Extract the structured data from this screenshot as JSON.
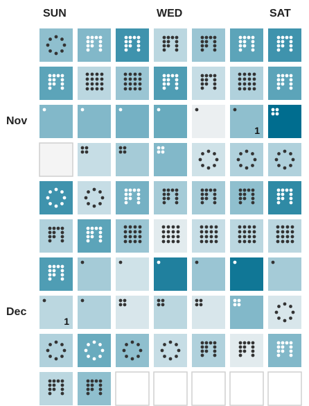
{
  "chart_data": {
    "type": "heatmap",
    "subtype": "calendar",
    "weekday_labels": [
      "SUN",
      "",
      "",
      "WED",
      "",
      "",
      "SAT"
    ],
    "month_labels": [
      {
        "text": "Nov",
        "week_index": 2
      },
      {
        "text": "Dec",
        "week_index": 7
      }
    ],
    "day_number_labels": [
      {
        "text": "1",
        "week_index": 2,
        "day_index": 5
      },
      {
        "text": "1",
        "week_index": 7,
        "day_index": 0
      }
    ],
    "color_scale": [
      "#f4f4f4",
      "#c6dde5",
      "#8fbfce",
      "#4f9db4",
      "#006d8f"
    ],
    "encoding": "cell color and number of dots encode value",
    "weeks": [
      {
        "days": [
          {
            "v": 0.5,
            "d": 8
          },
          {
            "v": 0.55,
            "d": 12
          },
          {
            "v": 0.8,
            "d": 12
          },
          {
            "v": 0.3,
            "d": 12
          },
          {
            "v": 0.45,
            "d": 12
          },
          {
            "v": 0.7,
            "d": 12
          },
          {
            "v": 0.8,
            "d": 12
          }
        ]
      },
      {
        "days": [
          {
            "v": 0.7,
            "d": 12
          },
          {
            "v": 0.3,
            "d": 16
          },
          {
            "v": 0.45,
            "d": 16
          },
          {
            "v": 0.75,
            "d": 12
          },
          {
            "v": 0.25,
            "d": 12
          },
          {
            "v": 0.35,
            "d": 16
          },
          {
            "v": 0.7,
            "d": 12
          }
        ]
      },
      {
        "days": [
          {
            "v": 0.55,
            "d": 1
          },
          {
            "v": 0.55,
            "d": 1
          },
          {
            "v": 0.6,
            "d": 1
          },
          {
            "v": 0.65,
            "d": 1
          },
          {
            "v": 0.05,
            "d": 1
          },
          {
            "v": 0.5,
            "d": 1
          },
          {
            "v": 1.0,
            "d": 4
          }
        ]
      },
      {
        "days": [
          {
            "v": 0.0,
            "d": 0
          },
          {
            "v": 0.25,
            "d": 4
          },
          {
            "v": 0.4,
            "d": 4
          },
          {
            "v": 0.55,
            "d": 4
          },
          {
            "v": 0.2,
            "d": 8
          },
          {
            "v": 0.35,
            "d": 8
          },
          {
            "v": 0.35,
            "d": 8
          }
        ]
      },
      {
        "days": [
          {
            "v": 0.8,
            "d": 8
          },
          {
            "v": 0.25,
            "d": 8
          },
          {
            "v": 0.6,
            "d": 12
          },
          {
            "v": 0.4,
            "d": 12
          },
          {
            "v": 0.4,
            "d": 12
          },
          {
            "v": 0.5,
            "d": 12
          },
          {
            "v": 0.85,
            "d": 12
          }
        ]
      },
      {
        "days": [
          {
            "v": 0.35,
            "d": 12
          },
          {
            "v": 0.7,
            "d": 12
          },
          {
            "v": 0.45,
            "d": 16
          },
          {
            "v": 0.1,
            "d": 16
          },
          {
            "v": 0.25,
            "d": 16
          },
          {
            "v": 0.3,
            "d": 16
          },
          {
            "v": 0.3,
            "d": 16
          }
        ]
      },
      {
        "days": [
          {
            "v": 0.75,
            "d": 12
          },
          {
            "v": 0.4,
            "d": 1
          },
          {
            "v": 0.2,
            "d": 1
          },
          {
            "v": 0.9,
            "d": 1
          },
          {
            "v": 0.45,
            "d": 1
          },
          {
            "v": 0.95,
            "d": 1
          },
          {
            "v": 0.4,
            "d": 1
          }
        ]
      },
      {
        "days": [
          {
            "v": 0.3,
            "d": 1
          },
          {
            "v": 0.35,
            "d": 1
          },
          {
            "v": 0.15,
            "d": 4
          },
          {
            "v": 0.3,
            "d": 4
          },
          {
            "v": 0.15,
            "d": 4
          },
          {
            "v": 0.55,
            "d": 4
          },
          {
            "v": 0.15,
            "d": 8
          }
        ]
      },
      {
        "days": [
          {
            "v": 0.35,
            "d": 8
          },
          {
            "v": 0.65,
            "d": 8
          },
          {
            "v": 0.5,
            "d": 8
          },
          {
            "v": 0.25,
            "d": 8
          },
          {
            "v": 0.35,
            "d": 12
          },
          {
            "v": 0.1,
            "d": 12
          },
          {
            "v": 0.55,
            "d": 12
          }
        ]
      },
      {
        "days": [
          {
            "v": 0.3,
            "d": 12
          },
          {
            "v": 0.5,
            "d": 12
          },
          {
            "v": -1,
            "d": 0
          },
          {
            "v": -1,
            "d": 0
          },
          {
            "v": -1,
            "d": 0
          },
          {
            "v": -1,
            "d": 0
          },
          {
            "v": -1,
            "d": 0
          }
        ]
      }
    ]
  }
}
